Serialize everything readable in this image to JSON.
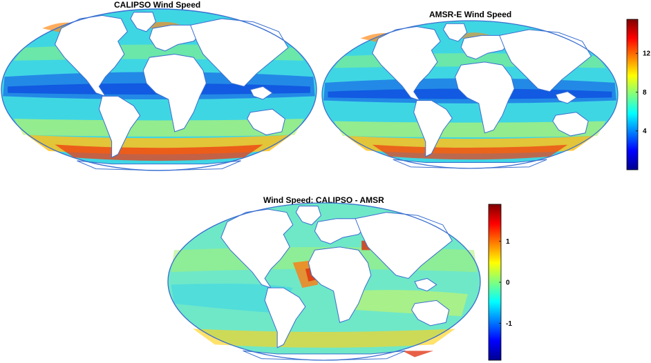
{
  "figure": {
    "panels": [
      {
        "id": "calipso",
        "title": "CALIPSO Wind Speed",
        "variable": "wind speed"
      },
      {
        "id": "amsr",
        "title": "AMSR-E Wind Speed",
        "variable": "wind speed"
      },
      {
        "id": "diff",
        "title": "Wind Speed: CALIPSO - AMSR",
        "variable": "wind speed difference"
      }
    ],
    "colorbars": [
      {
        "id": "speed",
        "ticks": [
          "12",
          "8",
          "4"
        ],
        "tick_values": [
          12,
          8,
          4
        ],
        "range": [
          0,
          15.5
        ]
      },
      {
        "id": "diff",
        "ticks": [
          "1",
          "0",
          "-1"
        ],
        "tick_values": [
          1,
          0,
          -1
        ],
        "range": [
          -1.9,
          1.9
        ]
      }
    ],
    "projection": "Hammer-Aitoff global",
    "colormap": "jet",
    "land_color": "#ffffff",
    "coastline_color": "#3a6fd0",
    "colors": {
      "low": "#00008f",
      "mid": "#7fff7f",
      "high": "#7f0000"
    }
  }
}
